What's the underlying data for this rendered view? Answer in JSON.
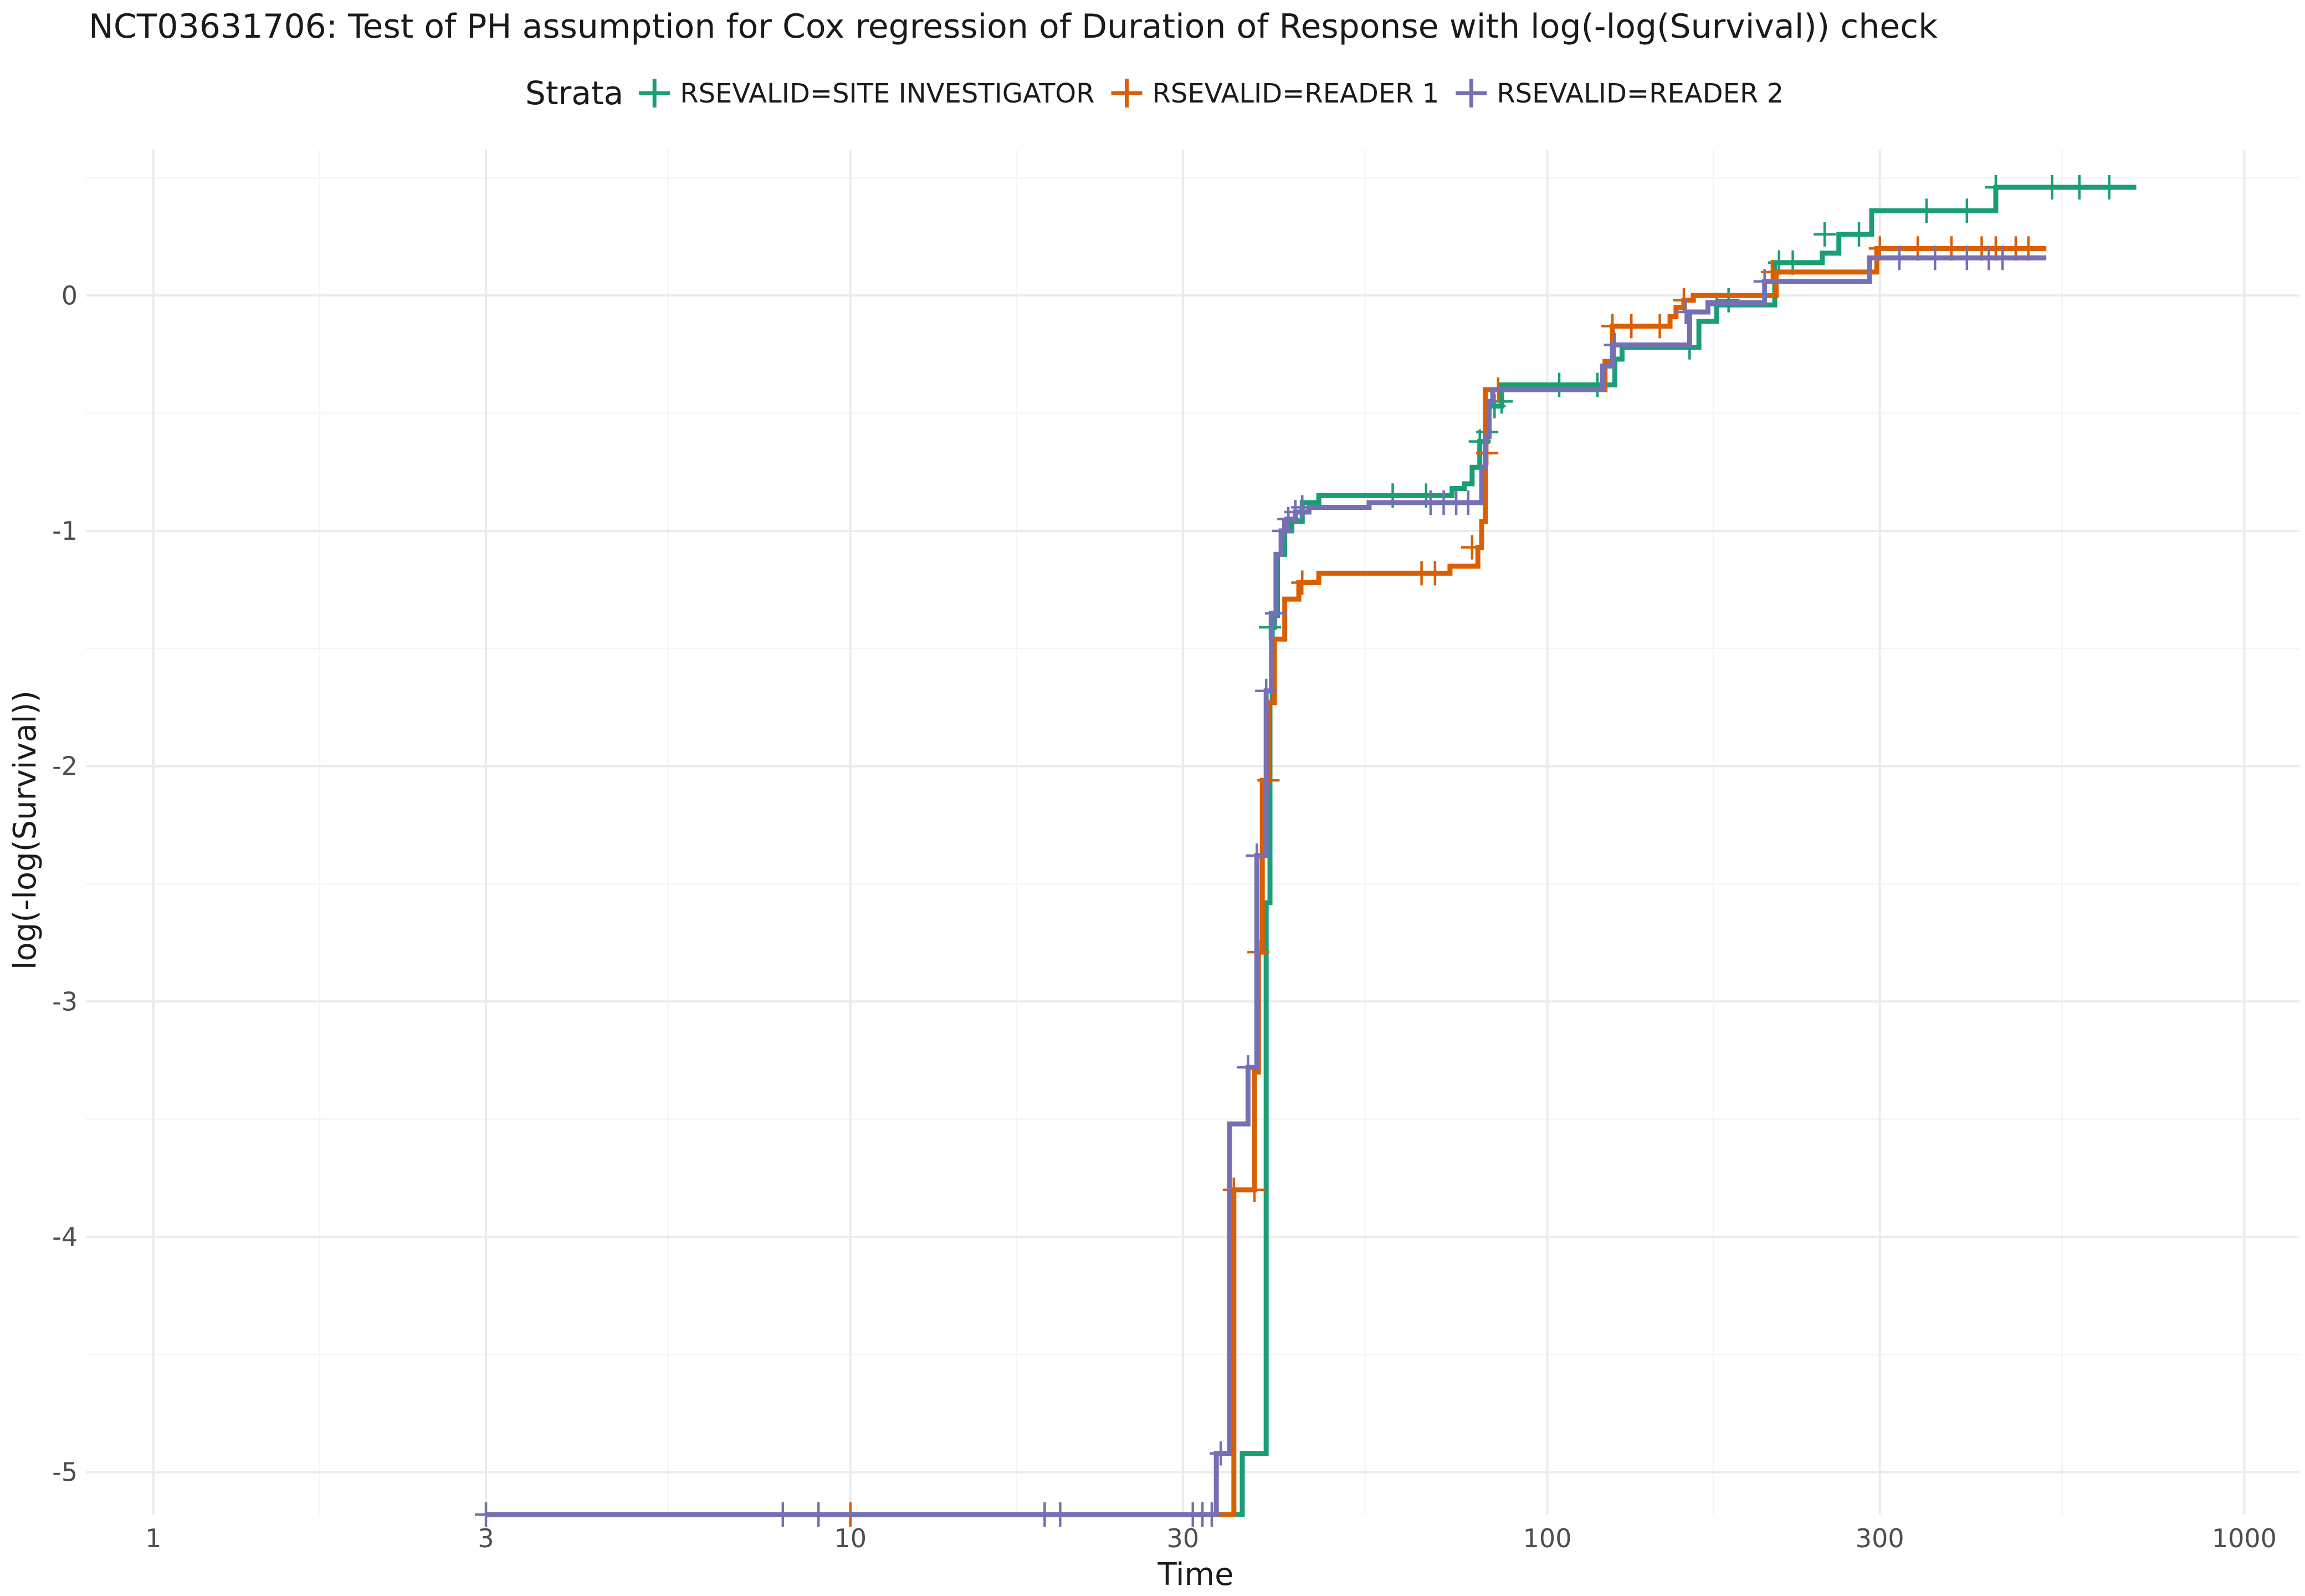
{
  "chart_data": {
    "type": "line",
    "title": "NCT03631706: Test of PH assumption for Cox regression of Duration of Response with log(-log(Survival)) check",
    "xlabel": "Time",
    "ylabel": "log(-log(Survival))",
    "x_scale": "log10",
    "xlim": [
      0.8,
      1200
    ],
    "ylim": [
      -5.18,
      0.62
    ],
    "x_ticks": [
      1,
      3,
      10,
      30,
      100,
      300,
      1000
    ],
    "x_tick_labels": [
      "1",
      "3",
      "10",
      "30",
      "100",
      "300",
      "1000"
    ],
    "y_ticks": [
      -5,
      -4,
      -3,
      -2,
      -1,
      0
    ],
    "y_tick_labels": [
      "-5",
      "-4",
      "-3",
      "-2",
      "-1",
      "0"
    ],
    "grid": true,
    "legend": {
      "title": "Strata",
      "position": "top"
    },
    "series": [
      {
        "name": "RSEVALID=SITE INVESTIGATOR",
        "color": "#1b9e77",
        "step_x": [
          36.5,
          39.5,
          40.0,
          40.3,
          40.6,
          41.0,
          42.0,
          43.0,
          44.5,
          47.0,
          73,
          76,
          78,
          80,
          82,
          86,
          125,
          128,
          165,
          175,
          212,
          248,
          262,
          292,
          440
        ],
        "step_y": [
          -4.92,
          -2.58,
          -1.73,
          -1.41,
          -1.36,
          -1.1,
          -1.0,
          -0.96,
          -0.88,
          -0.85,
          -0.82,
          -0.8,
          -0.73,
          -0.62,
          -0.47,
          -0.38,
          -0.27,
          -0.22,
          -0.11,
          -0.04,
          0.14,
          0.18,
          0.26,
          0.36,
          0.46
        ],
        "x_end": 700,
        "censor_x": [
          10,
          40,
          60,
          67,
          80,
          82,
          84,
          86,
          104,
          118,
          160,
          175,
          182,
          215,
          225,
          250,
          280,
          350,
          400,
          440,
          530,
          580,
          640
        ],
        "censor_y": [
          -5.18,
          -1.41,
          -0.85,
          -0.85,
          -0.62,
          -0.58,
          -0.47,
          -0.45,
          -0.38,
          -0.38,
          -0.22,
          -0.04,
          -0.02,
          0.14,
          0.14,
          0.26,
          0.26,
          0.36,
          0.36,
          0.46,
          0.46,
          0.46,
          0.46
        ]
      },
      {
        "name": "RSEVALID=READER 1",
        "color": "#d95f02",
        "step_x": [
          35.5,
          38.0,
          38.5,
          39.0,
          39.8,
          40.6,
          42.0,
          44.0,
          47.0,
          72.5,
          79.5,
          80.5,
          81.5,
          121,
          124,
          150,
          153,
          157,
          162,
          213,
          297
        ],
        "step_y": [
          -3.8,
          -3.3,
          -2.79,
          -2.06,
          -1.73,
          -1.46,
          -1.29,
          -1.22,
          -1.18,
          -1.15,
          -1.07,
          -0.96,
          -0.4,
          -0.28,
          -0.13,
          -0.09,
          -0.05,
          -0.02,
          0.0,
          0.1,
          0.2
        ],
        "x_end": 520,
        "censor_x": [
          10,
          35.5,
          38.0,
          38.5,
          39.8,
          44.5,
          66,
          69,
          78,
          82,
          85,
          124,
          132,
          145,
          157,
          210,
          300,
          340,
          380,
          420,
          440,
          470,
          490
        ],
        "censor_y": [
          -5.18,
          -3.8,
          -3.8,
          -2.79,
          -2.06,
          -1.22,
          -1.18,
          -1.18,
          -1.07,
          -0.67,
          -0.4,
          -0.13,
          -0.13,
          -0.13,
          -0.02,
          0.1,
          0.2,
          0.2,
          0.2,
          0.2,
          0.2,
          0.2,
          0.2
        ]
      },
      {
        "name": "RSEVALID=READER 2",
        "color": "#7570b3",
        "step_x": [
          33.5,
          35.0,
          37.2,
          38.3,
          39.5,
          40.2,
          40.8,
          41.5,
          42.3,
          43.5,
          45.5,
          55.5,
          80.5,
          81.5,
          82.5,
          83.5,
          120,
          124,
          160,
          170,
          205,
          290
        ],
        "step_y": [
          -4.92,
          -3.52,
          -3.28,
          -2.38,
          -1.68,
          -1.35,
          -1.1,
          -1.0,
          -0.95,
          -0.92,
          -0.9,
          -0.88,
          -0.73,
          -0.6,
          -0.45,
          -0.4,
          -0.3,
          -0.21,
          -0.07,
          -0.03,
          0.06,
          0.16
        ],
        "x_end": 520,
        "censor_x": [
          3,
          8,
          9,
          19,
          20,
          31,
          32,
          33,
          34,
          37.2,
          38.3,
          39.5,
          40.8,
          41.8,
          42.5,
          43.5,
          44.5,
          68,
          71,
          74,
          77,
          125,
          158,
          205,
          320,
          360,
          400,
          430,
          450
        ],
        "censor_y": [
          -5.18,
          -5.18,
          -5.18,
          -5.18,
          -5.18,
          -5.18,
          -5.18,
          -5.18,
          -4.92,
          -3.28,
          -2.38,
          -1.68,
          -1.35,
          -1.0,
          -0.95,
          -0.92,
          -0.9,
          -0.88,
          -0.88,
          -0.88,
          -0.88,
          -0.21,
          -0.07,
          0.06,
          0.16,
          0.16,
          0.16,
          0.16,
          0.16
        ]
      }
    ]
  }
}
